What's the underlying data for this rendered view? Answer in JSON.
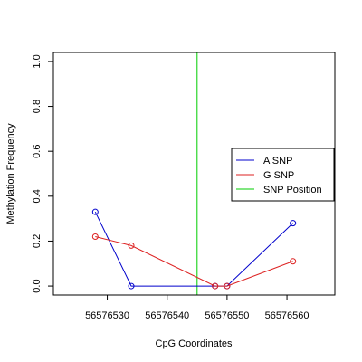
{
  "chart_data": {
    "type": "line",
    "title": "",
    "xlabel": "CpG Coordinates",
    "ylabel": "Methylation Frequency",
    "xlim": [
      56576521,
      56576568
    ],
    "ylim": [
      -0.04,
      1.04
    ],
    "x_ticks": [
      56576530,
      56576540,
      56576550,
      56576560
    ],
    "x_tick_labels": [
      "56576530",
      "56576540",
      "56576550",
      "56576560"
    ],
    "y_ticks": [
      0.0,
      0.2,
      0.4,
      0.6,
      0.8,
      1.0
    ],
    "y_tick_labels": [
      "0.0",
      "0.2",
      "0.4",
      "0.6",
      "0.8",
      "1.0"
    ],
    "grid": false,
    "legend_position": "right",
    "series": [
      {
        "name": "A SNP",
        "color": "#0000cc",
        "x": [
          56576528,
          56576534,
          56576548,
          56576550,
          56576561
        ],
        "y": [
          0.33,
          0.0,
          0.0,
          0.0,
          0.28
        ]
      },
      {
        "name": "G SNP",
        "color": "#dd2222",
        "x": [
          56576528,
          56576534,
          56576548,
          56576550,
          56576561
        ],
        "y": [
          0.22,
          0.18,
          0.0,
          0.0,
          0.11
        ]
      }
    ],
    "vlines": [
      {
        "name": "SNP Position",
        "x": 56576545,
        "color": "#00cc00"
      }
    ],
    "legend": [
      {
        "label": "A SNP",
        "color": "#0000cc",
        "marker": "line-circle"
      },
      {
        "label": "G SNP",
        "color": "#dd2222",
        "marker": "line-circle"
      },
      {
        "label": "SNP Position",
        "color": "#00cc00",
        "marker": "line"
      }
    ]
  }
}
